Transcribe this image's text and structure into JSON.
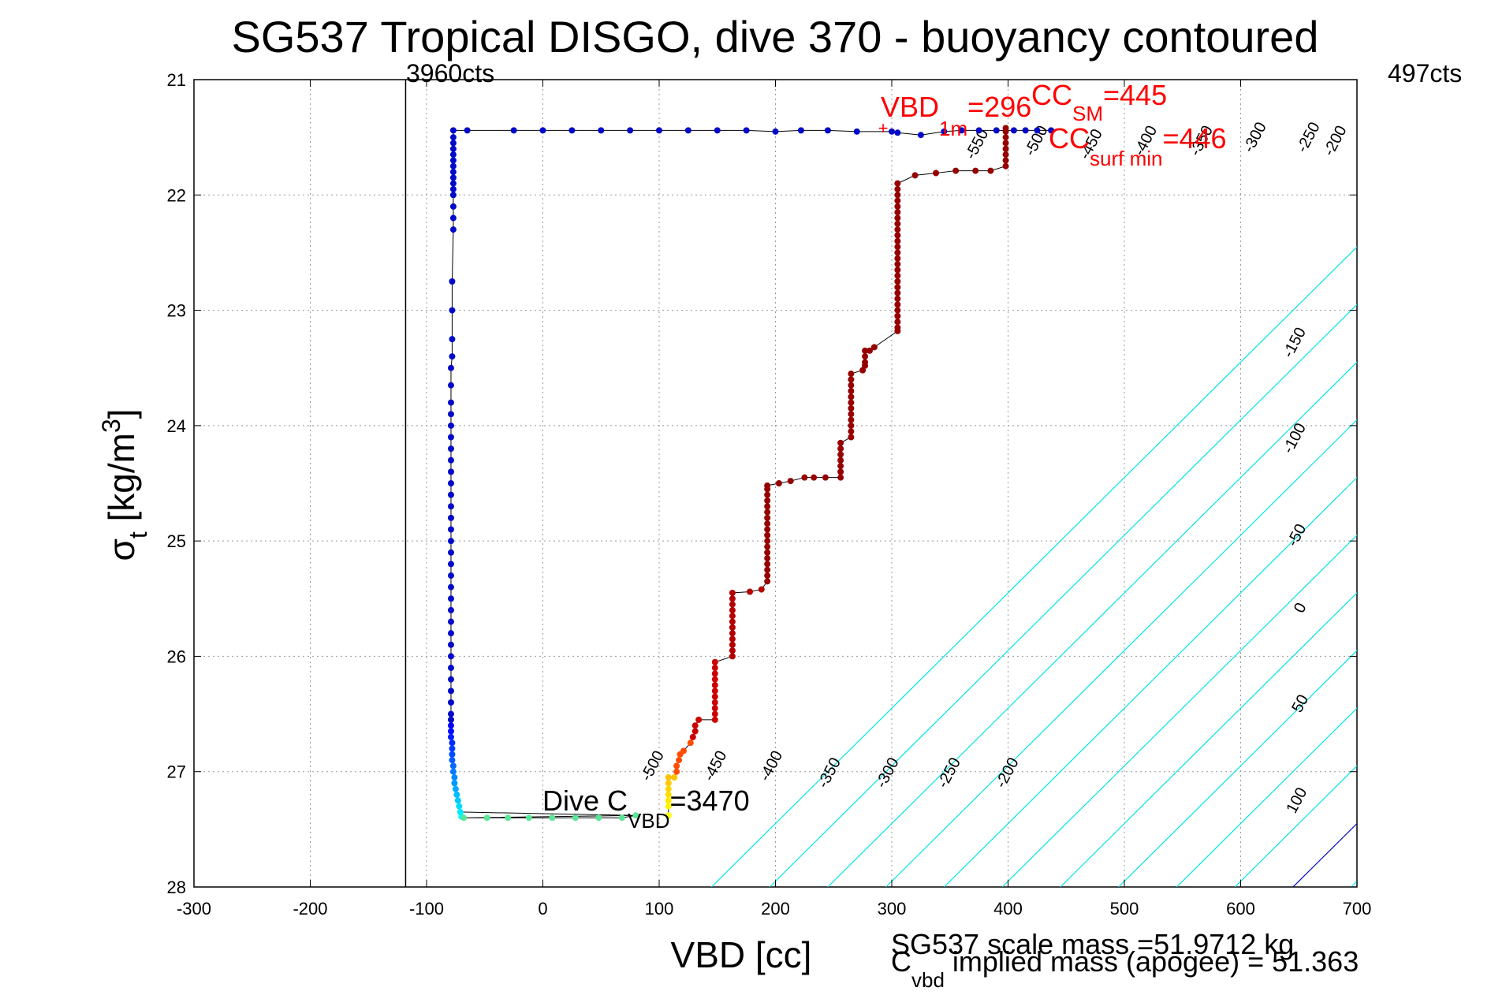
{
  "chart_data": {
    "type": "scatter",
    "title": "SG537 Tropical DISGO, dive 370 - buoyancy contoured",
    "xlabel": "VBD [cc]",
    "ylabel_main": "σ",
    "ylabel_sub": "t",
    "ylabel_rest": " [kg/m",
    "ylabel_sup": "3",
    "ylabel_end": "]",
    "xlim": [
      -300,
      700
    ],
    "ylim": [
      21,
      28
    ],
    "y_reversed": true,
    "grid": true,
    "xticks": [
      -300,
      -200,
      -100,
      0,
      100,
      200,
      300,
      400,
      500,
      600,
      700
    ],
    "yticks": [
      21,
      22,
      23,
      24,
      25,
      26,
      27,
      28
    ],
    "top_left_label": "3960cts",
    "top_right_label": "497cts",
    "vbd_1m_label": "VBD",
    "vbd_1m_sub": "1m",
    "vbd_1m_value": "=296",
    "cc_sm_label": "CC",
    "cc_sm_sub": "SM",
    "cc_sm_value": "=445",
    "cc_surf_label": "CC",
    "cc_surf_sub": "surf min",
    "cc_surf_value": "=446",
    "dive_c_label": "Dive C",
    "dive_c_sub": "VBD",
    "dive_c_value": "=3470",
    "bottom_line1": "SG537 scale mass =51.9712 kg",
    "bottom_line2_prefix": "C",
    "bottom_line2_sub": "vbd",
    "bottom_line2_rest": " implied mass (apogee) = 51.363",
    "vertical_marker_x": -118,
    "contours": [
      {
        "value": -500,
        "label": "-500",
        "color": "#00e5e5"
      },
      {
        "value": -450,
        "label": "-450",
        "color": "#00e5e5"
      },
      {
        "value": -400,
        "label": "-400",
        "color": "#00e5e5"
      },
      {
        "value": -350,
        "label": "-350",
        "color": "#00e5e5"
      },
      {
        "value": -300,
        "label": "-300",
        "color": "#00e5e5"
      },
      {
        "value": -250,
        "label": "-250",
        "color": "#00e5e5"
      },
      {
        "value": -200,
        "label": "-200",
        "color": "#00e5e5"
      },
      {
        "value": -150,
        "label": "-150",
        "color": "#00e5e5"
      },
      {
        "value": -100,
        "label": "-100",
        "color": "#00e5e5"
      },
      {
        "value": -50,
        "label": "-50",
        "color": "#00e5e5"
      },
      {
        "value": 0,
        "label": "0",
        "color": "#0000cc"
      },
      {
        "value": 50,
        "label": "50",
        "color": "#00e5e5"
      },
      {
        "value": 100,
        "label": "100",
        "color": "#e000e0"
      }
    ],
    "contour_labels": [
      {
        "text": "-500",
        "x": 98,
        "y": 26.97
      },
      {
        "text": "-450",
        "x": 152,
        "y": 26.97
      },
      {
        "text": "-400",
        "x": 200,
        "y": 26.97
      },
      {
        "text": "-350",
        "x": 250,
        "y": 27.03
      },
      {
        "text": "-300",
        "x": 300,
        "y": 27.03
      },
      {
        "text": "-250",
        "x": 353,
        "y": 27.03
      },
      {
        "text": "-200",
        "x": 403,
        "y": 27.03
      },
      {
        "text": "-550",
        "x": 377,
        "y": 21.58
      },
      {
        "text": "-500",
        "x": 428,
        "y": 21.55
      },
      {
        "text": "-450",
        "x": 475,
        "y": 21.58
      },
      {
        "text": "-400",
        "x": 522,
        "y": 21.55
      },
      {
        "text": "-350",
        "x": 570,
        "y": 21.55
      },
      {
        "text": "-300",
        "x": 616,
        "y": 21.52
      },
      {
        "text": "-250",
        "x": 662,
        "y": 21.52
      },
      {
        "text": "-200",
        "x": 685,
        "y": 21.55
      },
      {
        "text": "-150",
        "x": 650,
        "y": 23.3
      },
      {
        "text": "-100",
        "x": 650,
        "y": 24.13
      },
      {
        "text": "-50",
        "x": 652,
        "y": 24.97
      },
      {
        "text": "0",
        "x": 655,
        "y": 25.6
      },
      {
        "text": "50",
        "x": 655,
        "y": 26.43
      },
      {
        "text": "100",
        "x": 652,
        "y": 27.27
      }
    ],
    "descent": [
      [
        -65,
        21.44
      ],
      [
        -25,
        21.44
      ],
      [
        0,
        21.44
      ],
      [
        25,
        21.44
      ],
      [
        50,
        21.44
      ],
      [
        75,
        21.44
      ],
      [
        100,
        21.44
      ],
      [
        125,
        21.44
      ],
      [
        150,
        21.44
      ],
      [
        175,
        21.44
      ],
      [
        200,
        21.45
      ],
      [
        222,
        21.44
      ],
      [
        245,
        21.44
      ],
      [
        270,
        21.45
      ],
      [
        300,
        21.45
      ],
      [
        305,
        21.46
      ],
      [
        325,
        21.48
      ],
      [
        345,
        21.45
      ],
      [
        360,
        21.44
      ],
      [
        375,
        21.44
      ],
      [
        390,
        21.44
      ],
      [
        405,
        21.44
      ],
      [
        415,
        21.44
      ],
      [
        425,
        21.44
      ],
      [
        437,
        21.44
      ],
      [
        -77,
        21.44
      ],
      [
        -77,
        21.5
      ],
      [
        -77,
        21.55
      ],
      [
        -77,
        21.6
      ],
      [
        -77,
        21.65
      ],
      [
        -77,
        21.7
      ],
      [
        -77,
        21.75
      ],
      [
        -77,
        21.8
      ],
      [
        -77,
        21.85
      ],
      [
        -77,
        21.9
      ],
      [
        -77,
        21.95
      ],
      [
        -77,
        22.0
      ],
      [
        -77,
        22.1
      ],
      [
        -77,
        22.2
      ],
      [
        -77,
        22.3
      ],
      [
        -78,
        22.75
      ],
      [
        -78,
        23.0
      ],
      [
        -78,
        23.25
      ],
      [
        -78,
        23.4
      ],
      [
        -79,
        23.5
      ],
      [
        -79,
        23.65
      ],
      [
        -79,
        23.8
      ],
      [
        -79,
        23.9
      ],
      [
        -79,
        24.0
      ],
      [
        -79,
        24.1
      ],
      [
        -79,
        24.2
      ],
      [
        -79,
        24.3
      ],
      [
        -79,
        24.4
      ],
      [
        -79,
        24.5
      ],
      [
        -79,
        24.6
      ],
      [
        -79,
        24.7
      ],
      [
        -79,
        24.8
      ],
      [
        -79,
        24.9
      ],
      [
        -79,
        25.0
      ],
      [
        -79,
        25.1
      ],
      [
        -79,
        25.2
      ],
      [
        -79,
        25.3
      ],
      [
        -79,
        25.4
      ],
      [
        -79,
        25.5
      ],
      [
        -79,
        25.6
      ],
      [
        -79,
        25.7
      ],
      [
        -79,
        25.8
      ],
      [
        -79,
        25.9
      ],
      [
        -79,
        26.0
      ],
      [
        -79,
        26.1
      ],
      [
        -79,
        26.2
      ],
      [
        -79,
        26.3
      ],
      [
        -79,
        26.4
      ],
      [
        -79,
        26.5
      ],
      [
        -79,
        26.55
      ],
      [
        -79,
        26.6
      ],
      [
        -79,
        26.65
      ],
      [
        -79,
        26.7
      ],
      [
        -78,
        26.75
      ],
      [
        -78,
        26.8
      ],
      [
        -78,
        26.85
      ],
      [
        -78,
        26.9
      ],
      [
        -77,
        26.95
      ],
      [
        -77,
        27.0
      ],
      [
        -76,
        27.05
      ],
      [
        -76,
        27.1
      ],
      [
        -75,
        27.15
      ],
      [
        -74,
        27.2
      ],
      [
        -73,
        27.25
      ],
      [
        -72,
        27.3
      ],
      [
        -71,
        27.35
      ],
      [
        -70,
        27.39
      ],
      [
        -68,
        27.4
      ],
      [
        -48,
        27.4
      ],
      [
        -30,
        27.4
      ],
      [
        -12,
        27.4
      ],
      [
        8,
        27.4
      ],
      [
        28,
        27.4
      ],
      [
        48,
        27.4
      ],
      [
        68,
        27.4
      ],
      [
        80,
        27.38
      ]
    ],
    "ascent": [
      [
        108,
        27.38
      ],
      [
        108,
        27.3
      ],
      [
        108,
        27.25
      ],
      [
        108,
        27.2
      ],
      [
        108,
        27.15
      ],
      [
        108,
        27.1
      ],
      [
        108,
        27.05
      ],
      [
        113,
        27.05
      ],
      [
        115,
        27.0
      ],
      [
        115,
        26.95
      ],
      [
        117,
        26.9
      ],
      [
        118,
        26.85
      ],
      [
        121,
        26.82
      ],
      [
        127,
        26.75
      ],
      [
        129,
        26.7
      ],
      [
        131,
        26.65
      ],
      [
        131,
        26.6
      ],
      [
        134,
        26.55
      ],
      [
        148,
        26.55
      ],
      [
        148,
        26.5
      ],
      [
        148,
        26.45
      ],
      [
        148,
        26.4
      ],
      [
        148,
        26.35
      ],
      [
        148,
        26.3
      ],
      [
        148,
        26.25
      ],
      [
        148,
        26.2
      ],
      [
        148,
        26.15
      ],
      [
        148,
        26.1
      ],
      [
        148,
        26.05
      ],
      [
        163,
        26.0
      ],
      [
        163,
        25.95
      ],
      [
        163,
        25.9
      ],
      [
        163,
        25.85
      ],
      [
        163,
        25.8
      ],
      [
        163,
        25.75
      ],
      [
        163,
        25.7
      ],
      [
        163,
        25.65
      ],
      [
        163,
        25.6
      ],
      [
        163,
        25.55
      ],
      [
        163,
        25.5
      ],
      [
        163,
        25.45
      ],
      [
        178,
        25.44
      ],
      [
        188,
        25.42
      ],
      [
        193,
        25.35
      ],
      [
        193,
        25.3
      ],
      [
        193,
        25.25
      ],
      [
        193,
        25.2
      ],
      [
        193,
        25.15
      ],
      [
        193,
        25.1
      ],
      [
        193,
        25.05
      ],
      [
        193,
        25.0
      ],
      [
        193,
        24.95
      ],
      [
        193,
        24.9
      ],
      [
        193,
        24.85
      ],
      [
        193,
        24.8
      ],
      [
        193,
        24.75
      ],
      [
        193,
        24.7
      ],
      [
        193,
        24.65
      ],
      [
        193,
        24.6
      ],
      [
        193,
        24.55
      ],
      [
        193,
        24.52
      ],
      [
        203,
        24.5
      ],
      [
        213,
        24.48
      ],
      [
        225,
        24.45
      ],
      [
        233,
        24.45
      ],
      [
        243,
        24.45
      ],
      [
        256,
        24.45
      ],
      [
        256,
        24.4
      ],
      [
        256,
        24.35
      ],
      [
        256,
        24.3
      ],
      [
        256,
        24.25
      ],
      [
        256,
        24.2
      ],
      [
        256,
        24.15
      ],
      [
        265,
        24.1
      ],
      [
        265,
        24.05
      ],
      [
        265,
        24.0
      ],
      [
        265,
        23.95
      ],
      [
        265,
        23.9
      ],
      [
        265,
        23.85
      ],
      [
        265,
        23.8
      ],
      [
        265,
        23.75
      ],
      [
        265,
        23.7
      ],
      [
        265,
        23.65
      ],
      [
        265,
        23.6
      ],
      [
        265,
        23.55
      ],
      [
        275,
        23.52
      ],
      [
        277,
        23.48
      ],
      [
        277,
        23.45
      ],
      [
        277,
        23.4
      ],
      [
        277,
        23.35
      ],
      [
        281,
        23.35
      ],
      [
        285,
        23.32
      ],
      [
        305,
        23.18
      ],
      [
        305,
        23.15
      ],
      [
        305,
        23.1
      ],
      [
        305,
        23.05
      ],
      [
        305,
        23.0
      ],
      [
        305,
        22.95
      ],
      [
        305,
        22.9
      ],
      [
        305,
        22.85
      ],
      [
        305,
        22.8
      ],
      [
        305,
        22.75
      ],
      [
        305,
        22.7
      ],
      [
        305,
        22.65
      ],
      [
        305,
        22.6
      ],
      [
        305,
        22.55
      ],
      [
        305,
        22.5
      ],
      [
        305,
        22.45
      ],
      [
        305,
        22.4
      ],
      [
        305,
        22.35
      ],
      [
        305,
        22.3
      ],
      [
        305,
        22.25
      ],
      [
        305,
        22.2
      ],
      [
        305,
        22.15
      ],
      [
        305,
        22.1
      ],
      [
        305,
        22.05
      ],
      [
        305,
        22.0
      ],
      [
        305,
        21.95
      ],
      [
        305,
        21.9
      ],
      [
        320,
        21.83
      ],
      [
        338,
        21.81
      ],
      [
        355,
        21.79
      ],
      [
        372,
        21.79
      ],
      [
        385,
        21.79
      ],
      [
        398,
        21.75
      ],
      [
        398,
        21.7
      ],
      [
        398,
        21.65
      ],
      [
        398,
        21.6
      ],
      [
        398,
        21.55
      ],
      [
        398,
        21.5
      ],
      [
        398,
        21.45
      ],
      [
        398,
        21.42
      ]
    ]
  }
}
